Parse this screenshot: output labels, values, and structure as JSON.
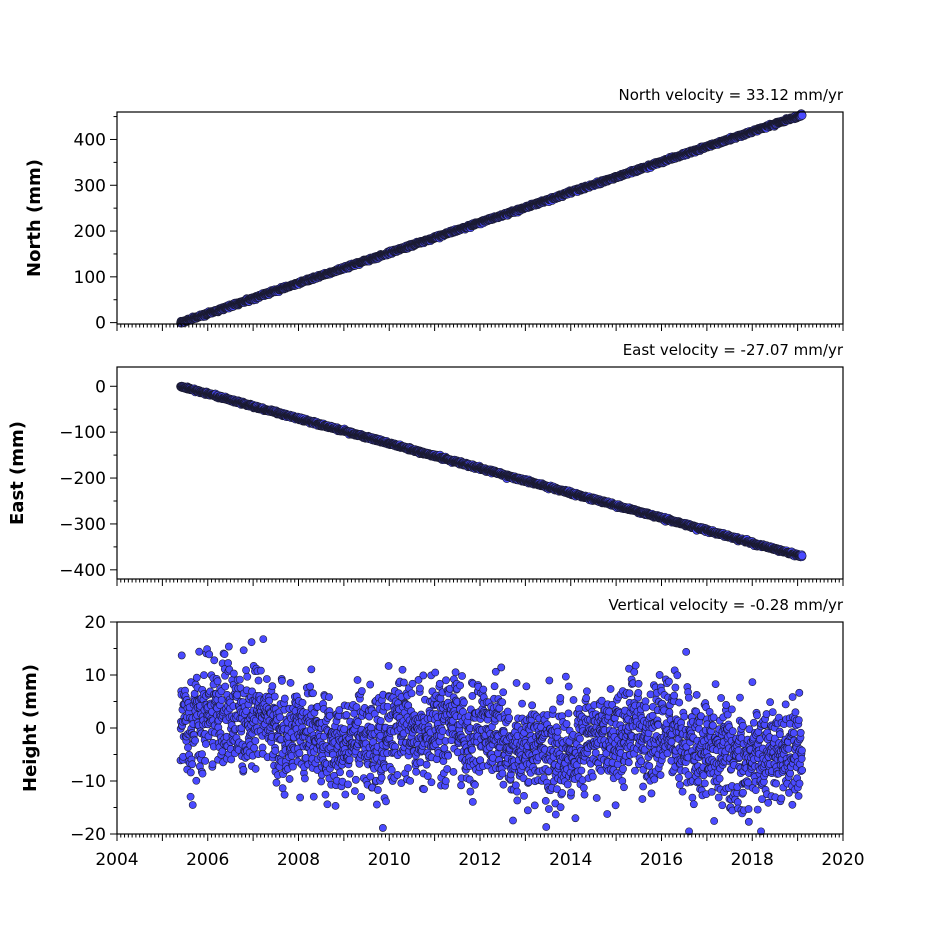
{
  "chart_data": [
    {
      "type": "scatter",
      "title": "North velocity = 33.12 mm/yr",
      "ylabel": "North (mm)",
      "xlim": [
        2004,
        2020
      ],
      "ylim": [
        -3,
        460
      ],
      "yticks": [
        0,
        100,
        200,
        300,
        400
      ],
      "marker_color": "#4a4aff",
      "edge_color": "#1a1a2e",
      "series": [
        {
          "x_start": 2005.4,
          "x_end": 2019.1,
          "trend_mm_per_yr": 33.12,
          "y_start": 0,
          "noise_mm": 1.5
        }
      ]
    },
    {
      "type": "scatter",
      "title": "East velocity = -27.07 mm/yr",
      "ylabel": "East (mm)",
      "xlim": [
        2004,
        2020
      ],
      "ylim": [
        -420,
        42
      ],
      "yticks": [
        0,
        -100,
        -200,
        -300,
        -400
      ],
      "ytick_labels": [
        "0",
        "−100",
        "−200",
        "−300",
        "−400"
      ],
      "marker_color": "#4a4aff",
      "edge_color": "#1a1a2e",
      "series": [
        {
          "x_start": 2005.4,
          "x_end": 2019.1,
          "trend_mm_per_yr": -27.07,
          "y_start": 0,
          "noise_mm": 1.5
        }
      ]
    },
    {
      "type": "scatter",
      "title": "Vertical velocity = -0.28 mm/yr",
      "ylabel": "Height (mm)",
      "xlabel": "",
      "xlim": [
        2004,
        2020
      ],
      "ylim": [
        -20,
        20
      ],
      "yticks": [
        -20,
        -10,
        0,
        10,
        20
      ],
      "ytick_labels": [
        "−20",
        "−10",
        "0",
        "10",
        "20"
      ],
      "xticks": [
        2004,
        2006,
        2008,
        2010,
        2012,
        2014,
        2016,
        2018,
        2020
      ],
      "marker_color": "#4a4aff",
      "edge_color": "#1a1a2e",
      "series": [
        {
          "x_start": 2005.4,
          "x_end": 2019.1,
          "trend_mm_per_yr": -0.28,
          "y_start": 0,
          "noise_mm": 5.0
        }
      ]
    }
  ]
}
